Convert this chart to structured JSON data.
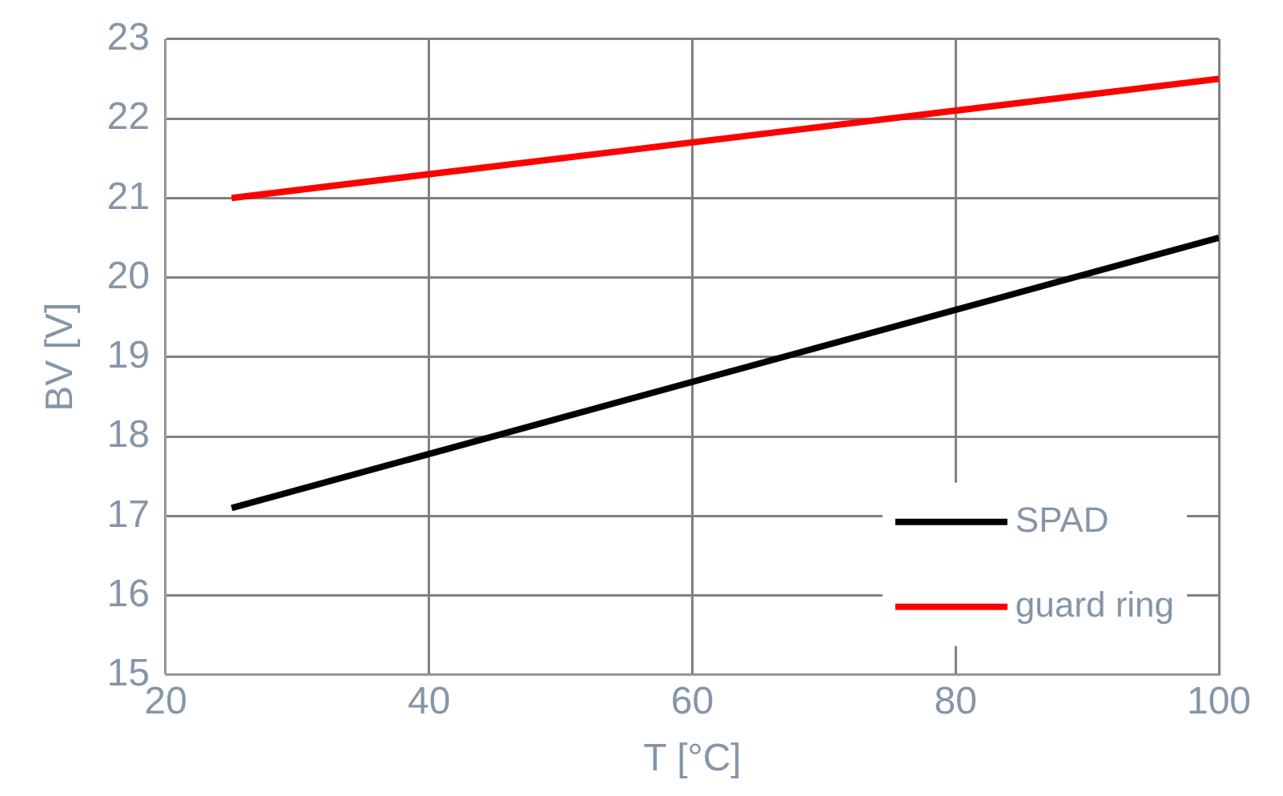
{
  "chart_data": {
    "type": "line",
    "xlabel": "T [°C]",
    "ylabel": "BV [V]",
    "xlim": [
      20,
      100
    ],
    "xticks": [
      20,
      40,
      60,
      80,
      100
    ],
    "ylim": [
      15,
      23
    ],
    "yticks": [
      15,
      16,
      17,
      18,
      19,
      20,
      21,
      22,
      23
    ],
    "x": [
      25,
      100
    ],
    "grid": true,
    "legend": "bottom right",
    "marker": "none",
    "line_style": "solid",
    "series": [
      {
        "name": "SPAD",
        "color": "#000000",
        "values": [
          17.1,
          20.5
        ]
      },
      {
        "name": "guard ring",
        "color": "#ff0000",
        "values": [
          21.0,
          22.5
        ]
      }
    ]
  }
}
